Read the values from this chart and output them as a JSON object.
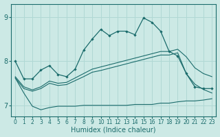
{
  "xlabel": "Humidex (Indice chaleur)",
  "bg_color": "#cce9e5",
  "grid_color": "#b0d8d4",
  "line_color": "#1a6b6b",
  "xlim": [
    -0.5,
    23.5
  ],
  "ylim": [
    6.75,
    9.3
  ],
  "yticks": [
    7,
    8,
    9
  ],
  "xticks": [
    0,
    1,
    2,
    3,
    4,
    5,
    6,
    7,
    8,
    9,
    10,
    11,
    12,
    13,
    14,
    15,
    16,
    17,
    18,
    19,
    20,
    21,
    22,
    23
  ],
  "series_top": [
    8.0,
    7.6,
    7.6,
    7.8,
    7.9,
    7.7,
    7.65,
    7.82,
    8.25,
    8.5,
    8.72,
    8.58,
    8.68,
    8.68,
    8.6,
    8.98,
    8.88,
    8.68,
    8.22,
    8.12,
    7.72,
    7.42,
    7.38,
    7.38
  ],
  "series_upper_band": [
    7.65,
    7.42,
    7.35,
    7.42,
    7.55,
    7.5,
    7.52,
    7.62,
    7.72,
    7.82,
    7.87,
    7.92,
    7.97,
    8.02,
    8.07,
    8.12,
    8.17,
    8.22,
    8.22,
    8.27,
    8.1,
    7.85,
    7.72,
    7.65
  ],
  "series_lower_band": [
    7.62,
    7.38,
    7.32,
    7.38,
    7.5,
    7.45,
    7.47,
    7.56,
    7.65,
    7.75,
    7.79,
    7.84,
    7.89,
    7.94,
    7.99,
    8.04,
    8.09,
    8.14,
    8.14,
    8.19,
    7.72,
    7.48,
    7.36,
    7.28
  ],
  "series_bottom": [
    7.62,
    7.28,
    6.98,
    6.9,
    6.95,
    6.98,
    6.98,
    6.98,
    7.0,
    7.0,
    7.0,
    7.0,
    7.0,
    7.0,
    7.02,
    7.02,
    7.02,
    7.05,
    7.05,
    7.08,
    7.1,
    7.1,
    7.12,
    7.15
  ]
}
